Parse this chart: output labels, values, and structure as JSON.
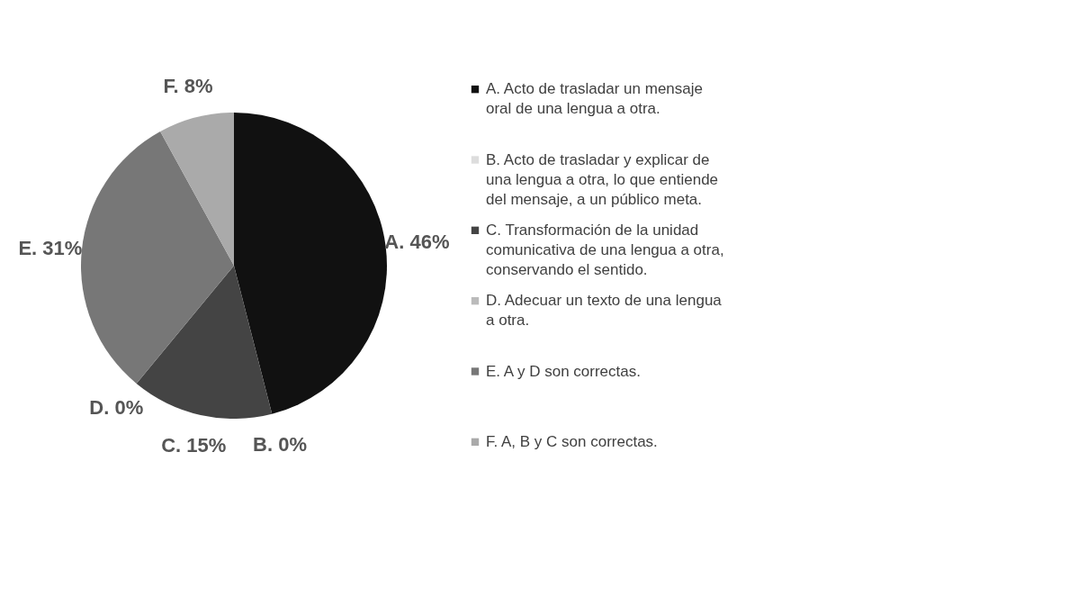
{
  "chart_data": {
    "type": "pie",
    "categories": [
      "A. Acto de trasladar un mensaje oral de una lengua a otra.",
      "B. Acto de trasladar y explicar de una lengua a otra, lo que entiende del mensaje, a un público meta.",
      "C. Transformación de la unidad comunicativa de una lengua a otra, conservando el sentido.",
      "D. Adecuar un texto de una lengua a otra.",
      "E. A y D son correctas.",
      "F. A, B y C son correctas."
    ],
    "values": [
      46,
      0,
      15,
      0,
      31,
      8
    ],
    "value_labels": [
      "A. 46%",
      "B. 0%",
      "C. 15%",
      "D. 0%",
      "E. 31%",
      "F. 8%"
    ],
    "colors": [
      "#111111",
      "#dddddd",
      "#444444",
      "#bbbbbb",
      "#777777",
      "#aaaaaa"
    ],
    "legend": "right"
  }
}
